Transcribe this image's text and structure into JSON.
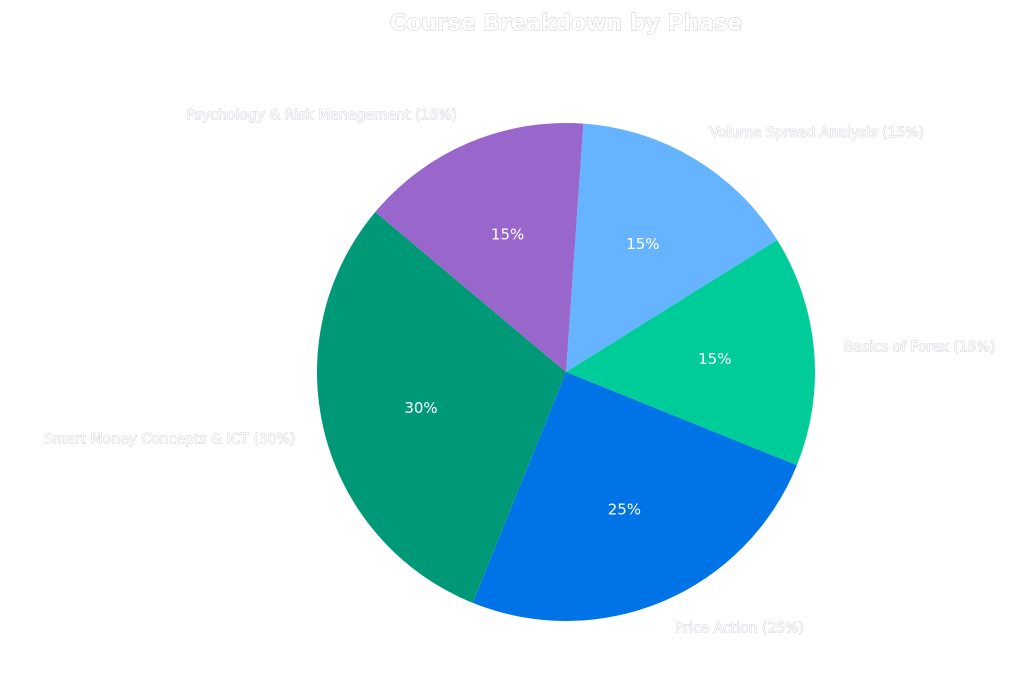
{
  "chart_data": {
    "type": "pie",
    "title": "Course Breakdown by Phase",
    "categories": [
      "Volume Spread Analysis (15%)",
      "Basics of Forex (15%)",
      "Price Action (25%)",
      "Smart Money Concepts & ICT (30%)",
      "Psychology & Risk Management (15%)"
    ],
    "values": [
      15,
      15,
      25,
      30,
      15
    ],
    "percent_labels": [
      "15%",
      "15%",
      "25%",
      "30%",
      "15%"
    ],
    "colors": [
      "#66b3ff",
      "#00cc99",
      "#0073e6",
      "#009977",
      "#9966cc"
    ],
    "legend": "none"
  }
}
